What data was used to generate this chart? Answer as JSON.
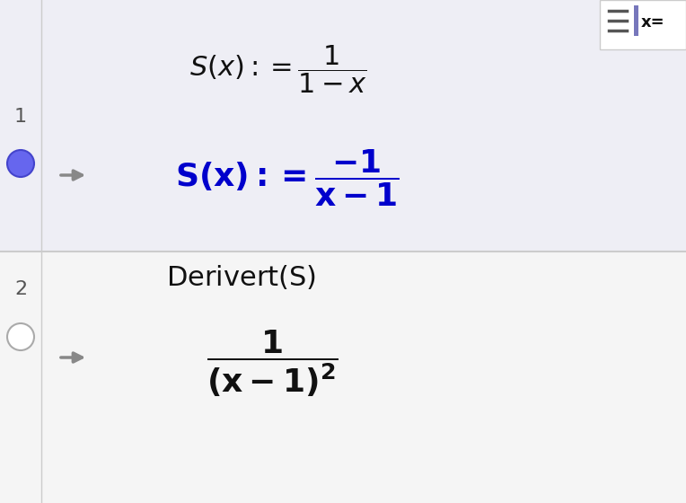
{
  "bg_color": "#f0f0f0",
  "row1_bg": "#eeeef5",
  "row2_bg": "#f5f5f5",
  "divider_color": "#cccccc",
  "line_number_color": "#555555",
  "arrow_color": "#888888",
  "black_text": "#111111",
  "blue_text": "#0000cc",
  "circle_fill": "#6666ee",
  "circle_edge": "#4444cc",
  "icon_bg": "#ffffff",
  "icon_border": "#cccccc",
  "icon_bar_color": "#7777bb",
  "label1": "1",
  "label2": "2",
  "figwidth": 7.64,
  "figheight": 5.6,
  "dpi": 100
}
